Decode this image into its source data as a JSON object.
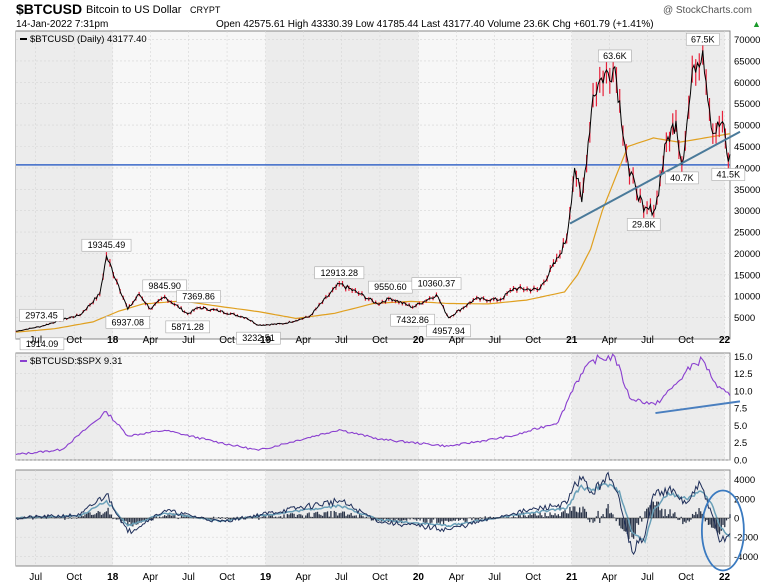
{
  "header": {
    "symbol": "$BTCUSD",
    "name": "Bitcoin to US Dollar",
    "exchange": "CRYPT",
    "date": "14-Jan-2022 7:31pm",
    "ohlc": "Open 42575.61  High 43330.39  Low 41785.44  Last 43177.40  Volume 23.6K  Chg +601.79 (+1.41%)",
    "trend": "▲",
    "copyright": "@ StockCharts.com"
  },
  "colors": {
    "price_line": "#000000",
    "price_up_fill": "#e8213a",
    "ma_line": "#e0a020",
    "trendline": "#4a7fbf",
    "ratio_line": "#8a3fcf",
    "macd_line": "#1f2f5a",
    "macd_line2": "#6aa0b8",
    "circle": "#3a7ac0",
    "horizontal_line": "#3a68c8",
    "shade": "#ececec"
  },
  "chart_data": [
    {
      "type": "line",
      "legend": "$BTCUSD (Daily) 43177.40",
      "ylim": [
        0,
        72000
      ],
      "yticks": [
        5000,
        10000,
        15000,
        20000,
        25000,
        30000,
        35000,
        40000,
        45000,
        50000,
        55000,
        60000,
        65000,
        70000
      ],
      "ytick_labels": [
        "5000",
        "10000",
        "15000",
        "20000",
        "25000",
        "30000",
        "35000",
        "40000",
        "45000",
        "50000",
        "55000",
        "60000",
        "65000",
        "70000"
      ],
      "xlim": [
        "2017-05-15",
        "2022-01-14"
      ],
      "x_tick_dates": [
        "2017-07-01",
        "2017-10-01",
        "2018-01-01",
        "2018-04-01",
        "2018-07-01",
        "2018-10-01",
        "2019-01-01",
        "2019-04-01",
        "2019-07-01",
        "2019-10-01",
        "2020-01-01",
        "2020-04-01",
        "2020-07-01",
        "2020-10-01",
        "2021-01-01",
        "2021-04-01",
        "2021-07-01",
        "2021-10-01",
        "2022-01-01"
      ],
      "x_tick_labels": [
        "Jul",
        "Oct",
        "18",
        "Apr",
        "Jul",
        "Oct",
        "19",
        "Apr",
        "Jul",
        "Oct",
        "20",
        "Apr",
        "Jul",
        "Oct",
        "21",
        "Apr",
        "Jul",
        "Oct",
        "22"
      ],
      "series": [
        {
          "role": "price",
          "x": [
            "2017-05-15",
            "2017-07-15",
            "2017-09-01",
            "2017-10-15",
            "2017-12-01",
            "2017-12-17",
            "2018-01-15",
            "2018-02-06",
            "2018-03-05",
            "2018-04-01",
            "2018-05-05",
            "2018-06-29",
            "2018-07-25",
            "2018-09-15",
            "2018-11-15",
            "2018-12-15",
            "2019-02-15",
            "2019-04-15",
            "2019-06-26",
            "2019-08-15",
            "2019-09-25",
            "2019-10-26",
            "2019-12-18",
            "2020-02-13",
            "2020-03-13",
            "2020-05-15",
            "2020-07-15",
            "2020-08-15",
            "2020-10-15",
            "2020-11-30",
            "2020-12-20",
            "2021-01-08",
            "2021-01-25",
            "2021-02-21",
            "2021-03-13",
            "2021-04-14",
            "2021-05-19",
            "2021-06-01",
            "2021-06-22",
            "2021-07-20",
            "2021-08-15",
            "2021-09-07",
            "2021-09-21",
            "2021-10-20",
            "2021-11-10",
            "2021-12-04",
            "2021-12-27",
            "2022-01-10",
            "2022-01-14"
          ],
          "y": [
            1800,
            2973.45,
            4500,
            5600,
            10500,
            19345.49,
            12500,
            6937.08,
            10500,
            7000,
            9845.9,
            5871.28,
            7369.86,
            6500,
            5000,
            3232.51,
            3600,
            5200,
            12913.28,
            10500,
            8200,
            9550.6,
            7432.86,
            10360.37,
            4957.94,
            9300,
            9200,
            11800,
            11500,
            19000,
            23500,
            40000,
            32000,
            57000,
            61000,
            63600,
            38000,
            36500,
            29800,
            30500,
            46000,
            51000,
            40700,
            64000,
            67500,
            48000,
            50800,
            41500,
            43177.4
          ]
        },
        {
          "role": "moving-average",
          "x": [
            "2017-05-15",
            "2017-08-15",
            "2017-11-15",
            "2018-01-15",
            "2018-03-15",
            "2018-06-15",
            "2018-09-15",
            "2018-12-15",
            "2019-03-15",
            "2019-06-15",
            "2019-09-15",
            "2019-12-15",
            "2020-03-15",
            "2020-06-15",
            "2020-09-15",
            "2020-12-15",
            "2021-01-15",
            "2021-02-15",
            "2021-03-15",
            "2021-05-15",
            "2021-07-15",
            "2021-09-15",
            "2021-11-15",
            "2022-01-14"
          ],
          "y": [
            1600,
            2400,
            4000,
            6500,
            8200,
            8900,
            7600,
            6400,
            4800,
            6000,
            8300,
            8800,
            8300,
            8200,
            9100,
            11000,
            15000,
            21000,
            30000,
            45000,
            47000,
            46000,
            47000,
            48000
          ]
        }
      ],
      "annotations": [
        {
          "label": "2973.45",
          "x": "2017-07-15",
          "y": 2973.45
        },
        {
          "label": "1914.09",
          "x": "2017-07-16",
          "y": 1914.09
        },
        {
          "label": "19345.49",
          "x": "2017-12-17",
          "y": 19345.49
        },
        {
          "label": "6937.08",
          "x": "2018-02-06",
          "y": 6937.08
        },
        {
          "label": "9845.90",
          "x": "2018-05-05",
          "y": 9845.9
        },
        {
          "label": "5871.28",
          "x": "2018-06-29",
          "y": 5871.28
        },
        {
          "label": "7369.86",
          "x": "2018-07-25",
          "y": 7369.86
        },
        {
          "label": "3232.51",
          "x": "2018-12-15",
          "y": 3232.51
        },
        {
          "label": "12913.28",
          "x": "2019-06-26",
          "y": 12913.28
        },
        {
          "label": "9550.60",
          "x": "2019-10-26",
          "y": 9550.6
        },
        {
          "label": "7432.86",
          "x": "2019-12-18",
          "y": 7432.86
        },
        {
          "label": "10360.37",
          "x": "2020-02-13",
          "y": 10360.37
        },
        {
          "label": "4957.94",
          "x": "2020-03-13",
          "y": 4957.94
        },
        {
          "label": "63.6K",
          "x": "2021-04-14",
          "y": 63600
        },
        {
          "label": "29.8K",
          "x": "2021-06-22",
          "y": 29800
        },
        {
          "label": "40.7K",
          "x": "2021-09-21",
          "y": 40700
        },
        {
          "label": "67.5K",
          "x": "2021-11-10",
          "y": 67500
        },
        {
          "label": "41.5K",
          "x": "2022-01-10",
          "y": 41500
        }
      ],
      "horizontal_line": 40700,
      "trendline": {
        "x": [
          "2020-12-28",
          "2022-01-14"
        ],
        "y": [
          27000,
          47500
        ]
      }
    },
    {
      "type": "line",
      "legend": "$BTCUSD:$SPX 9.31",
      "ylim": [
        0,
        15.5
      ],
      "yticks": [
        0.0,
        2.5,
        5.0,
        7.5,
        10.0,
        12.5,
        15.0
      ],
      "ytick_labels": [
        "0.0",
        "2.5",
        "5.0",
        "7.5",
        "10.0",
        "12.5",
        "15.0"
      ],
      "series": [
        {
          "role": "ratio",
          "x": [
            "2017-05-15",
            "2017-09-01",
            "2017-12-17",
            "2018-02-06",
            "2018-05-05",
            "2018-09-15",
            "2018-12-15",
            "2019-06-26",
            "2019-10-01",
            "2020-03-13",
            "2020-08-15",
            "2020-11-30",
            "2021-01-08",
            "2021-02-21",
            "2021-04-14",
            "2021-05-19",
            "2021-07-20",
            "2021-09-07",
            "2021-10-20",
            "2021-11-10",
            "2021-12-15",
            "2022-01-14"
          ],
          "y": [
            0.8,
            1.5,
            7.0,
            3.5,
            4.3,
            2.5,
            1.4,
            4.4,
            3.0,
            2.0,
            3.5,
            5.5,
            11.0,
            14.5,
            15.0,
            9.0,
            8.0,
            11.0,
            14.0,
            14.5,
            10.5,
            9.31
          ]
        }
      ],
      "trendline": {
        "x": [
          "2021-07-20",
          "2022-01-14"
        ],
        "y": [
          6.8,
          8.5
        ]
      }
    },
    {
      "type": "line",
      "ylim": [
        -5000,
        5000
      ],
      "yticks": [
        -4000,
        -2000,
        0,
        2000,
        4000
      ],
      "ytick_labels": [
        "-4000",
        "-2000",
        "0",
        "2000",
        "4000"
      ],
      "series": [
        {
          "role": "macd",
          "x": [
            "2017-05-15",
            "2017-10-15",
            "2017-12-17",
            "2018-02-06",
            "2018-05-05",
            "2018-09-15",
            "2019-06-26",
            "2019-10-01",
            "2020-03-13",
            "2020-08-15",
            "2020-12-20",
            "2021-01-20",
            "2021-02-21",
            "2021-03-25",
            "2021-04-25",
            "2021-05-25",
            "2021-06-25",
            "2021-07-15",
            "2021-08-20",
            "2021-10-01",
            "2021-11-05",
            "2021-12-01",
            "2021-12-20",
            "2022-01-14"
          ],
          "y": [
            0,
            300,
            2500,
            -1500,
            800,
            -400,
            1800,
            -400,
            -1200,
            500,
            1500,
            4300,
            2500,
            4500,
            2000,
            -3500,
            -1800,
            2500,
            3000,
            1500,
            3500,
            500,
            -2500,
            -1600
          ]
        },
        {
          "role": "signal",
          "x": [
            "2017-05-15",
            "2017-10-15",
            "2017-12-17",
            "2018-02-06",
            "2018-05-05",
            "2018-09-15",
            "2019-06-26",
            "2019-10-01",
            "2020-03-13",
            "2020-08-15",
            "2020-12-20",
            "2021-01-20",
            "2021-02-21",
            "2021-03-25",
            "2021-04-25",
            "2021-05-25",
            "2021-06-25",
            "2021-07-15",
            "2021-08-20",
            "2021-10-01",
            "2021-11-05",
            "2021-12-01",
            "2021-12-20",
            "2022-01-14"
          ],
          "y": [
            0,
            200,
            1800,
            -800,
            500,
            -300,
            1300,
            -200,
            -800,
            300,
            1000,
            3200,
            3000,
            3500,
            2800,
            -1500,
            -2500,
            800,
            2600,
            2000,
            2800,
            1500,
            -800,
            -2000
          ]
        }
      ],
      "highlight_circle": {
        "x": "2021-12-28",
        "y": -1300
      }
    }
  ]
}
